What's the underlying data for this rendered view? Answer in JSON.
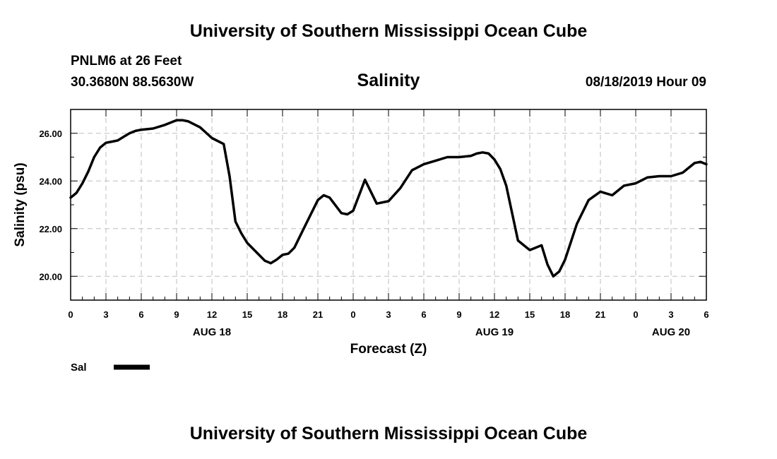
{
  "header": {
    "top_title": "University of Southern Mississippi Ocean Cube",
    "station": "PNLM6 at 26 Feet",
    "coords": "30.3680N 88.5630W",
    "run": "08/18/2019 Hour 09"
  },
  "footer": {
    "bottom_title": "University of Southern Mississippi Ocean Cube"
  },
  "chart_data": {
    "type": "line",
    "title": "Salinity",
    "xlabel": "Forecast (Z)",
    "ylabel": "Salinity (psu)",
    "xlim": [
      0,
      54
    ],
    "ylim": [
      19.0,
      27.0
    ],
    "grid": true,
    "x_ticks": [
      0,
      3,
      6,
      9,
      12,
      15,
      18,
      21,
      24,
      27,
      30,
      33,
      36,
      39,
      42,
      45,
      48,
      51,
      54
    ],
    "x_tick_labels": [
      "0",
      "3",
      "6",
      "9",
      "12",
      "15",
      "18",
      "21",
      "0",
      "3",
      "6",
      "9",
      "12",
      "15",
      "18",
      "21",
      "0",
      "3",
      "6"
    ],
    "date_labels": [
      {
        "x": 12,
        "label": "AUG 18"
      },
      {
        "x": 36,
        "label": "AUG 19"
      },
      {
        "x": 51,
        "label": "AUG 20"
      }
    ],
    "y_ticks": [
      20,
      22,
      24,
      26
    ],
    "y_tick_labels": [
      "20.00",
      "22.00",
      "24.00",
      "26.00"
    ],
    "legend": "bottom-left",
    "series": [
      {
        "name": "Sal",
        "color": "#000000",
        "x": [
          0,
          0.5,
          1,
          1.5,
          2,
          2.5,
          3,
          3.5,
          4,
          4.5,
          5,
          5.5,
          6,
          7,
          8,
          9,
          9.5,
          10,
          11,
          12,
          13,
          13.5,
          14,
          14.5,
          15,
          16,
          16.5,
          17,
          17.5,
          18,
          18.5,
          19,
          20,
          21,
          21.5,
          22,
          23,
          23.5,
          24,
          25,
          26,
          27,
          28,
          29,
          30,
          31,
          32,
          33,
          34,
          34.5,
          35,
          35.5,
          36,
          36.5,
          37,
          38,
          39,
          40,
          40.5,
          41,
          41.5,
          42,
          43,
          44,
          45,
          46,
          47,
          48,
          49,
          50,
          51,
          52,
          53,
          53.5,
          54
        ],
        "values": [
          23.3,
          23.5,
          23.9,
          24.4,
          25.0,
          25.4,
          25.6,
          25.65,
          25.7,
          25.85,
          26.0,
          26.1,
          26.15,
          26.2,
          26.35,
          26.55,
          26.55,
          26.5,
          26.25,
          25.8,
          25.55,
          24.2,
          22.3,
          21.8,
          21.4,
          20.9,
          20.65,
          20.55,
          20.7,
          20.9,
          20.95,
          21.2,
          22.2,
          23.2,
          23.4,
          23.3,
          22.65,
          22.6,
          22.75,
          24.05,
          23.05,
          23.15,
          23.7,
          24.45,
          24.7,
          24.85,
          25.0,
          25.0,
          25.05,
          25.15,
          25.2,
          25.15,
          24.9,
          24.5,
          23.8,
          21.5,
          21.1,
          21.3,
          20.5,
          20.0,
          20.2,
          20.7,
          22.2,
          23.2,
          23.55,
          23.4,
          23.8,
          23.9,
          24.15,
          24.2,
          24.2,
          24.35,
          24.75,
          24.8,
          24.7
        ]
      }
    ]
  }
}
